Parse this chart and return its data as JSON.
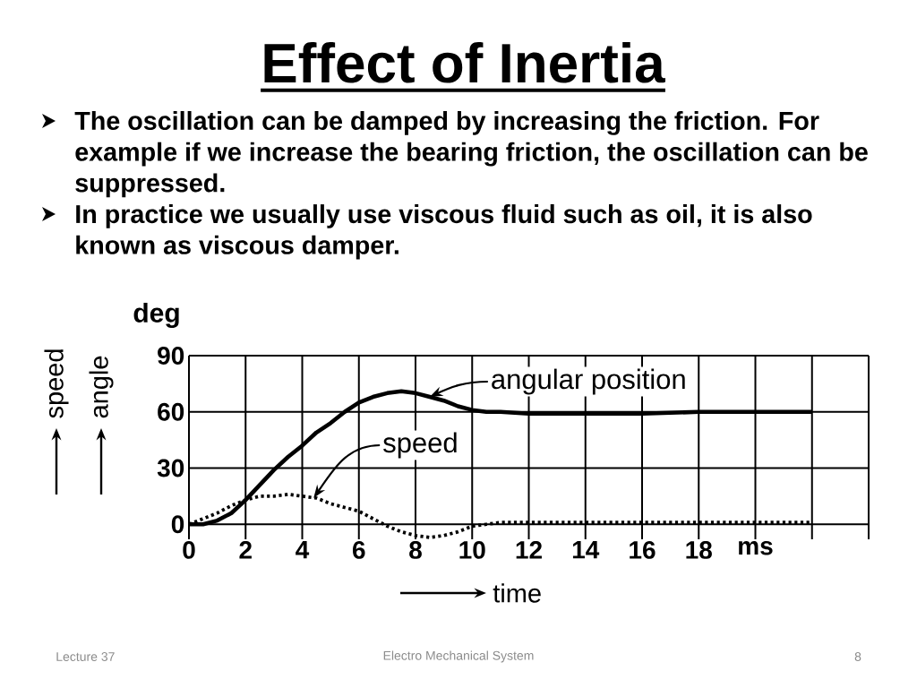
{
  "chart_data": {
    "type": "line",
    "title": "Effect of Inertia",
    "xlabel": "time",
    "ylabel": "deg",
    "annotations": [
      "The oscillation can be damped by increasing the friction. For example if we increase the bearing friction, the oscillation can be suppressed.",
      "In practice we usually use viscous fluid such as oil, it is also known as viscous damper.",
      {
        "text": "angular position",
        "x": 8.5,
        "y": 68
      },
      {
        "text": "speed",
        "x": 4.4,
        "y": 14
      },
      "speed",
      "angle",
      "Lecture 37",
      "Electro Mechanical System",
      "8"
    ],
    "x": [
      0,
      0.5,
      1,
      1.5,
      2,
      2.5,
      3,
      3.5,
      4,
      4.5,
      5,
      5.5,
      6,
      6.5,
      7,
      7.5,
      8,
      8.5,
      9,
      9.5,
      10,
      10.5,
      11,
      12,
      14,
      16,
      18,
      20,
      22
    ],
    "series": [
      {
        "color": "#000000",
        "line_style": "solid",
        "values": [
          0,
          0,
          2,
          6,
          13,
          21,
          29,
          36,
          42,
          49,
          54,
          60,
          65,
          68,
          70,
          71,
          70,
          68,
          66,
          63,
          61,
          60,
          60,
          59,
          59,
          59,
          60,
          60,
          60
        ]
      },
      {
        "color": "#000000",
        "line_style": "dotted",
        "values": [
          0,
          3,
          6,
          10,
          13,
          15,
          15,
          16,
          15,
          14,
          11,
          9,
          7,
          3,
          -1,
          -4,
          -6,
          -7,
          -6,
          -4,
          -1,
          0,
          1,
          1,
          1,
          1,
          1,
          1,
          1
        ]
      }
    ],
    "xlim": [
      0,
      24
    ],
    "ylim": [
      -8,
      90
    ],
    "xticks": [
      0,
      2,
      4,
      6,
      8,
      10,
      12,
      14,
      16,
      18,
      {
        "value": 20,
        "label": "ms"
      },
      {
        "value": 22,
        "label": null
      },
      {
        "value": 24,
        "label": null
      }
    ],
    "yticks": [
      0,
      30,
      60,
      90
    ],
    "grid": true
  }
}
